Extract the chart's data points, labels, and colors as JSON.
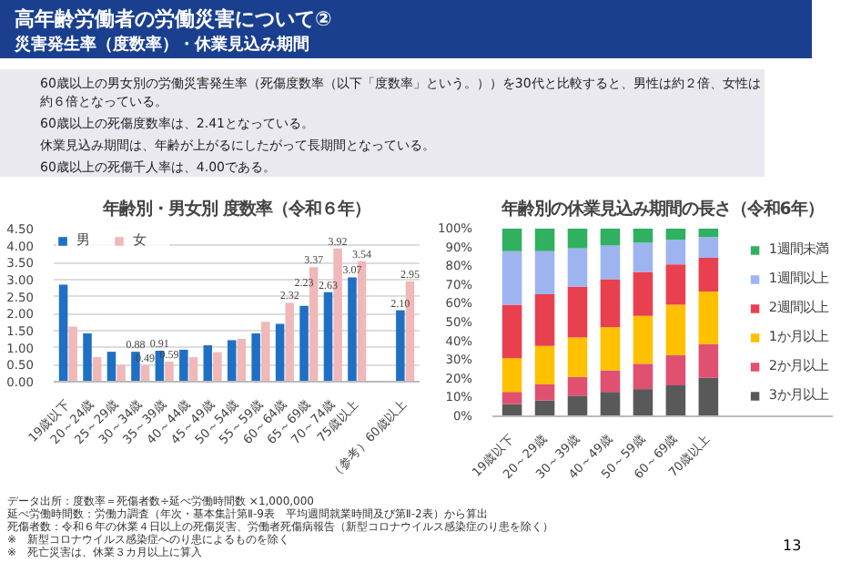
{
  "chart_data": [
    {
      "type": "other",
      "title": "高年齢労働者の労働災害について②",
      "subtitle": "災害発生率（度数率）・休業見込み期間",
      "annotations": [
        "60歳以上の男女別の労働災害発生率（死傷度数率（以下「度数率」という。））を30代と比較すると、男性は約２倍、女性は約６倍となっている。",
        "60歳以上の死傷度数率は、2.41となっている。",
        "休業見込み期間は、年齢が上がるにしたがって長期間となっている。",
        "60歳以上の死傷千人率は、4.00である。",
        "13"
      ]
    },
    {
      "type": "bar",
      "title": "年齢別・男女別 度数率（令和６年）",
      "categories": [
        "19歳以下",
        "20～24歳",
        "25～29歳",
        "30～34歳",
        "35～39歳",
        "40～44歳",
        "45～49歳",
        "50～54歳",
        "55～59歳",
        "60～64歳",
        "65～69歳",
        "70～74歳",
        "75歳以上",
        null,
        "（参考）60歳以上"
      ],
      "series": [
        {
          "name": "男",
          "color": "#1f6fc5",
          "values": [
            2.85,
            1.42,
            0.88,
            0.88,
            0.91,
            0.94,
            1.07,
            1.22,
            1.42,
            1.7,
            2.23,
            2.63,
            3.07,
            null,
            2.1
          ],
          "value_labels": [
            null,
            null,
            null,
            "0.88",
            "0.91",
            null,
            null,
            null,
            null,
            null,
            "2.23",
            "2.63",
            "3.07",
            null,
            "2.10"
          ]
        },
        {
          "name": "女",
          "color": "#f0b8b8",
          "values": [
            1.62,
            0.72,
            0.49,
            0.49,
            0.59,
            0.72,
            0.87,
            1.26,
            1.76,
            2.32,
            3.37,
            3.92,
            3.54,
            null,
            2.95
          ],
          "value_labels": [
            null,
            null,
            null,
            "0.49",
            "0.59",
            null,
            null,
            null,
            null,
            "2.32",
            "3.37",
            "3.92",
            "3.54",
            null,
            "2.95"
          ]
        }
      ],
      "ylim": [
        0,
        4.5
      ],
      "yticks": [
        {
          "value": 0,
          "label": "0.00"
        },
        {
          "value": 0.5,
          "label": "0.50"
        },
        {
          "value": 1,
          "label": "1.00"
        },
        {
          "value": 1.5,
          "label": "1.50"
        },
        {
          "value": 2,
          "label": "2.00"
        },
        {
          "value": 2.5,
          "label": "2.50"
        },
        {
          "value": 3,
          "label": "3.00"
        },
        {
          "value": 3.5,
          "label": "3.50"
        },
        {
          "value": 4,
          "label": "4.00"
        },
        {
          "value": 4.5,
          "label": "4.50"
        }
      ],
      "grid": "y",
      "legend": "top left",
      "annotations": [
        "データ出所：度数率＝死傷者数÷延べ労働時間数 ×1,000,000",
        "延べ労働時間数：労働力調査（年次・基本集計第Ⅱ-9表　平均週間就業時間及び第Ⅱ-2表）から算出",
        "死傷者数：令和６年の休業４日以上の死傷災害、労働者死傷病報告（新型コロナウイルス感染症のり患を除く）",
        "※　新型コロナウイルス感染症へのり患によるものを除く",
        "※　死亡災害は、休業３カ月以上に算入"
      ]
    },
    {
      "type": "bar",
      "stacked": true,
      "title": "年齢別の休業見込み期間の長さ（令和6年）",
      "categories": [
        "19歳以下",
        "20～29歳",
        "30～39歳",
        "40～49歳",
        "50～59歳",
        "60～69歳",
        "70歳以上"
      ],
      "series": [
        {
          "name": "3か月以上",
          "color": "#595959",
          "values": [
            6.5,
            8.5,
            11,
            13,
            14.5,
            16.5,
            20.5
          ]
        },
        {
          "name": "2か月以上",
          "color": "#e05070",
          "values": [
            6.5,
            8.5,
            10,
            11.5,
            13.5,
            16,
            18
          ]
        },
        {
          "name": "1か月以上",
          "color": "#ffc000",
          "values": [
            18,
            20.5,
            21,
            23,
            25.5,
            27,
            28
          ]
        },
        {
          "name": "2週間以上",
          "color": "#e8404f",
          "values": [
            28.5,
            27.5,
            27,
            25.5,
            23.5,
            21.5,
            18
          ]
        },
        {
          "name": "1週間以上",
          "color": "#9db4f0",
          "values": [
            28.5,
            23,
            20.5,
            18,
            15.5,
            13,
            11
          ]
        },
        {
          "name": "1週間未満",
          "color": "#30b060",
          "values": [
            12,
            12,
            10.5,
            9,
            7.5,
            6,
            4.5
          ]
        }
      ],
      "ylim": [
        0,
        100
      ],
      "yticks": [
        {
          "value": 0,
          "label": "0%"
        },
        {
          "value": 10,
          "label": "10%"
        },
        {
          "value": 20,
          "label": "20%"
        },
        {
          "value": 30,
          "label": "30%"
        },
        {
          "value": 40,
          "label": "40%"
        },
        {
          "value": 50,
          "label": "50%"
        },
        {
          "value": 60,
          "label": "60%"
        },
        {
          "value": 70,
          "label": "70%"
        },
        {
          "value": 80,
          "label": "80%"
        },
        {
          "value": 90,
          "label": "90%"
        },
        {
          "value": 100,
          "label": "100%"
        }
      ],
      "legend": "right"
    }
  ]
}
